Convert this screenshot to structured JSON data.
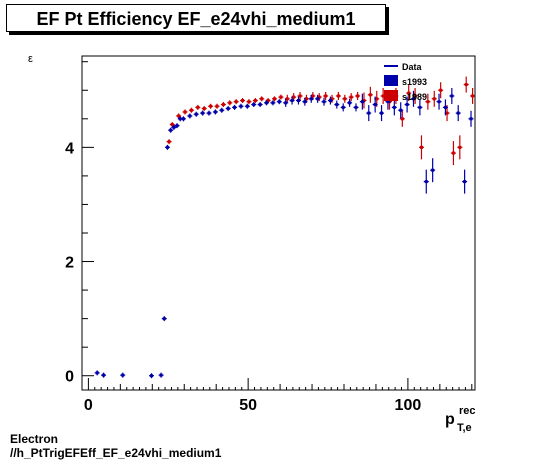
{
  "title": "EF Pt Efficiency EF_e24vhi_medium1",
  "footer": {
    "line1": "Electron",
    "line2": "//h_PtTrigEFEff_EF_e24vhi_medium1"
  },
  "chart_data": {
    "type": "scatter",
    "title": "EF Pt Efficiency EF_e24vhi_medium1",
    "ylabel": "ε",
    "xlabel": {
      "main": "p",
      "sup": "rec",
      "sub": "T,e"
    },
    "xlim": [
      -2,
      121
    ],
    "ylim": [
      -0.25,
      5.6
    ],
    "x_ticks": [
      0,
      50,
      100
    ],
    "y_ticks": [
      0,
      2,
      4
    ],
    "colors": {
      "Data": "#0000aa",
      "s1993": "#0000aa",
      "s1989": "#cc0000"
    },
    "legend": {
      "placement": "top-right",
      "entries": [
        {
          "name": "Data",
          "marker": "line"
        },
        {
          "name": "s1993",
          "marker": "box"
        },
        {
          "name": "s1989",
          "marker": "box"
        }
      ]
    },
    "series": [
      {
        "name": "Data",
        "points": [
          {
            "x": 3,
            "y": 0.05
          },
          {
            "x": 5,
            "y": 0.01
          },
          {
            "x": 11,
            "y": 0.01
          },
          {
            "x": 20,
            "y": 0.0
          },
          {
            "x": 23,
            "y": 0.01
          },
          {
            "x": 24,
            "y": 1.0
          },
          {
            "x": 25,
            "y": 4.0
          },
          {
            "x": 26,
            "y": 4.3
          },
          {
            "x": 27,
            "y": 4.35
          },
          {
            "x": 28,
            "y": 4.38
          },
          {
            "x": 29,
            "y": 4.5
          },
          {
            "x": 30,
            "y": 4.5
          },
          {
            "x": 32,
            "y": 4.55
          },
          {
            "x": 34,
            "y": 4.58
          },
          {
            "x": 36,
            "y": 4.6
          },
          {
            "x": 38,
            "y": 4.6
          },
          {
            "x": 40,
            "y": 4.62
          },
          {
            "x": 42,
            "y": 4.65
          },
          {
            "x": 44,
            "y": 4.68
          },
          {
            "x": 46,
            "y": 4.7
          },
          {
            "x": 48,
            "y": 4.72
          },
          {
            "x": 50,
            "y": 4.72
          },
          {
            "x": 52,
            "y": 4.75
          },
          {
            "x": 54,
            "y": 4.75
          },
          {
            "x": 56,
            "y": 4.78
          },
          {
            "x": 58,
            "y": 4.78
          },
          {
            "x": 60,
            "y": 4.8
          },
          {
            "x": 62,
            "y": 4.78
          },
          {
            "x": 64,
            "y": 4.82
          },
          {
            "x": 66,
            "y": 4.82
          },
          {
            "x": 68,
            "y": 4.8
          },
          {
            "x": 70,
            "y": 4.85
          },
          {
            "x": 72,
            "y": 4.85
          },
          {
            "x": 74,
            "y": 4.8
          },
          {
            "x": 76,
            "y": 4.82
          },
          {
            "x": 78,
            "y": 4.75
          },
          {
            "x": 80,
            "y": 4.7
          },
          {
            "x": 82,
            "y": 4.78
          },
          {
            "x": 84,
            "y": 4.7
          },
          {
            "x": 86,
            "y": 4.8
          },
          {
            "x": 88,
            "y": 4.6
          },
          {
            "x": 90,
            "y": 4.75
          },
          {
            "x": 92,
            "y": 4.6
          },
          {
            "x": 94,
            "y": 4.8
          },
          {
            "x": 96,
            "y": 4.7
          },
          {
            "x": 98,
            "y": 4.65
          },
          {
            "x": 100,
            "y": 4.75
          },
          {
            "x": 102,
            "y": 4.85
          },
          {
            "x": 104,
            "y": 4.7
          },
          {
            "x": 106,
            "y": 3.4
          },
          {
            "x": 108,
            "y": 3.6
          },
          {
            "x": 110,
            "y": 4.8
          },
          {
            "x": 112,
            "y": 4.7
          },
          {
            "x": 114,
            "y": 4.9
          },
          {
            "x": 116,
            "y": 4.6
          },
          {
            "x": 118,
            "y": 3.4
          },
          {
            "x": 120,
            "y": 4.5
          }
        ]
      },
      {
        "name": "s1989",
        "points": [
          {
            "x": 25,
            "y": 4.1
          },
          {
            "x": 26,
            "y": 4.4
          },
          {
            "x": 28,
            "y": 4.55
          },
          {
            "x": 30,
            "y": 4.62
          },
          {
            "x": 32,
            "y": 4.65
          },
          {
            "x": 34,
            "y": 4.7
          },
          {
            "x": 36,
            "y": 4.68
          },
          {
            "x": 38,
            "y": 4.72
          },
          {
            "x": 40,
            "y": 4.72
          },
          {
            "x": 42,
            "y": 4.75
          },
          {
            "x": 44,
            "y": 4.78
          },
          {
            "x": 46,
            "y": 4.8
          },
          {
            "x": 48,
            "y": 4.82
          },
          {
            "x": 50,
            "y": 4.8
          },
          {
            "x": 52,
            "y": 4.82
          },
          {
            "x": 54,
            "y": 4.85
          },
          {
            "x": 56,
            "y": 4.82
          },
          {
            "x": 58,
            "y": 4.85
          },
          {
            "x": 60,
            "y": 4.88
          },
          {
            "x": 62,
            "y": 4.85
          },
          {
            "x": 64,
            "y": 4.88
          },
          {
            "x": 66,
            "y": 4.9
          },
          {
            "x": 68,
            "y": 4.85
          },
          {
            "x": 70,
            "y": 4.9
          },
          {
            "x": 72,
            "y": 4.88
          },
          {
            "x": 74,
            "y": 4.9
          },
          {
            "x": 76,
            "y": 4.85
          },
          {
            "x": 78,
            "y": 4.9
          },
          {
            "x": 80,
            "y": 4.85
          },
          {
            "x": 82,
            "y": 4.88
          },
          {
            "x": 84,
            "y": 4.9
          },
          {
            "x": 86,
            "y": 4.82
          },
          {
            "x": 88,
            "y": 4.92
          },
          {
            "x": 90,
            "y": 4.85
          },
          {
            "x": 92,
            "y": 4.9
          },
          {
            "x": 94,
            "y": 4.8
          },
          {
            "x": 96,
            "y": 4.9
          },
          {
            "x": 98,
            "y": 4.5
          },
          {
            "x": 100,
            "y": 4.95
          },
          {
            "x": 102,
            "y": 4.9
          },
          {
            "x": 104,
            "y": 4.0
          },
          {
            "x": 106,
            "y": 4.8
          },
          {
            "x": 108,
            "y": 4.85
          },
          {
            "x": 110,
            "y": 5.0
          },
          {
            "x": 112,
            "y": 4.6
          },
          {
            "x": 114,
            "y": 3.9
          },
          {
            "x": 116,
            "y": 4.0
          },
          {
            "x": 118,
            "y": 5.1
          },
          {
            "x": 120,
            "y": 4.9
          }
        ]
      }
    ]
  }
}
